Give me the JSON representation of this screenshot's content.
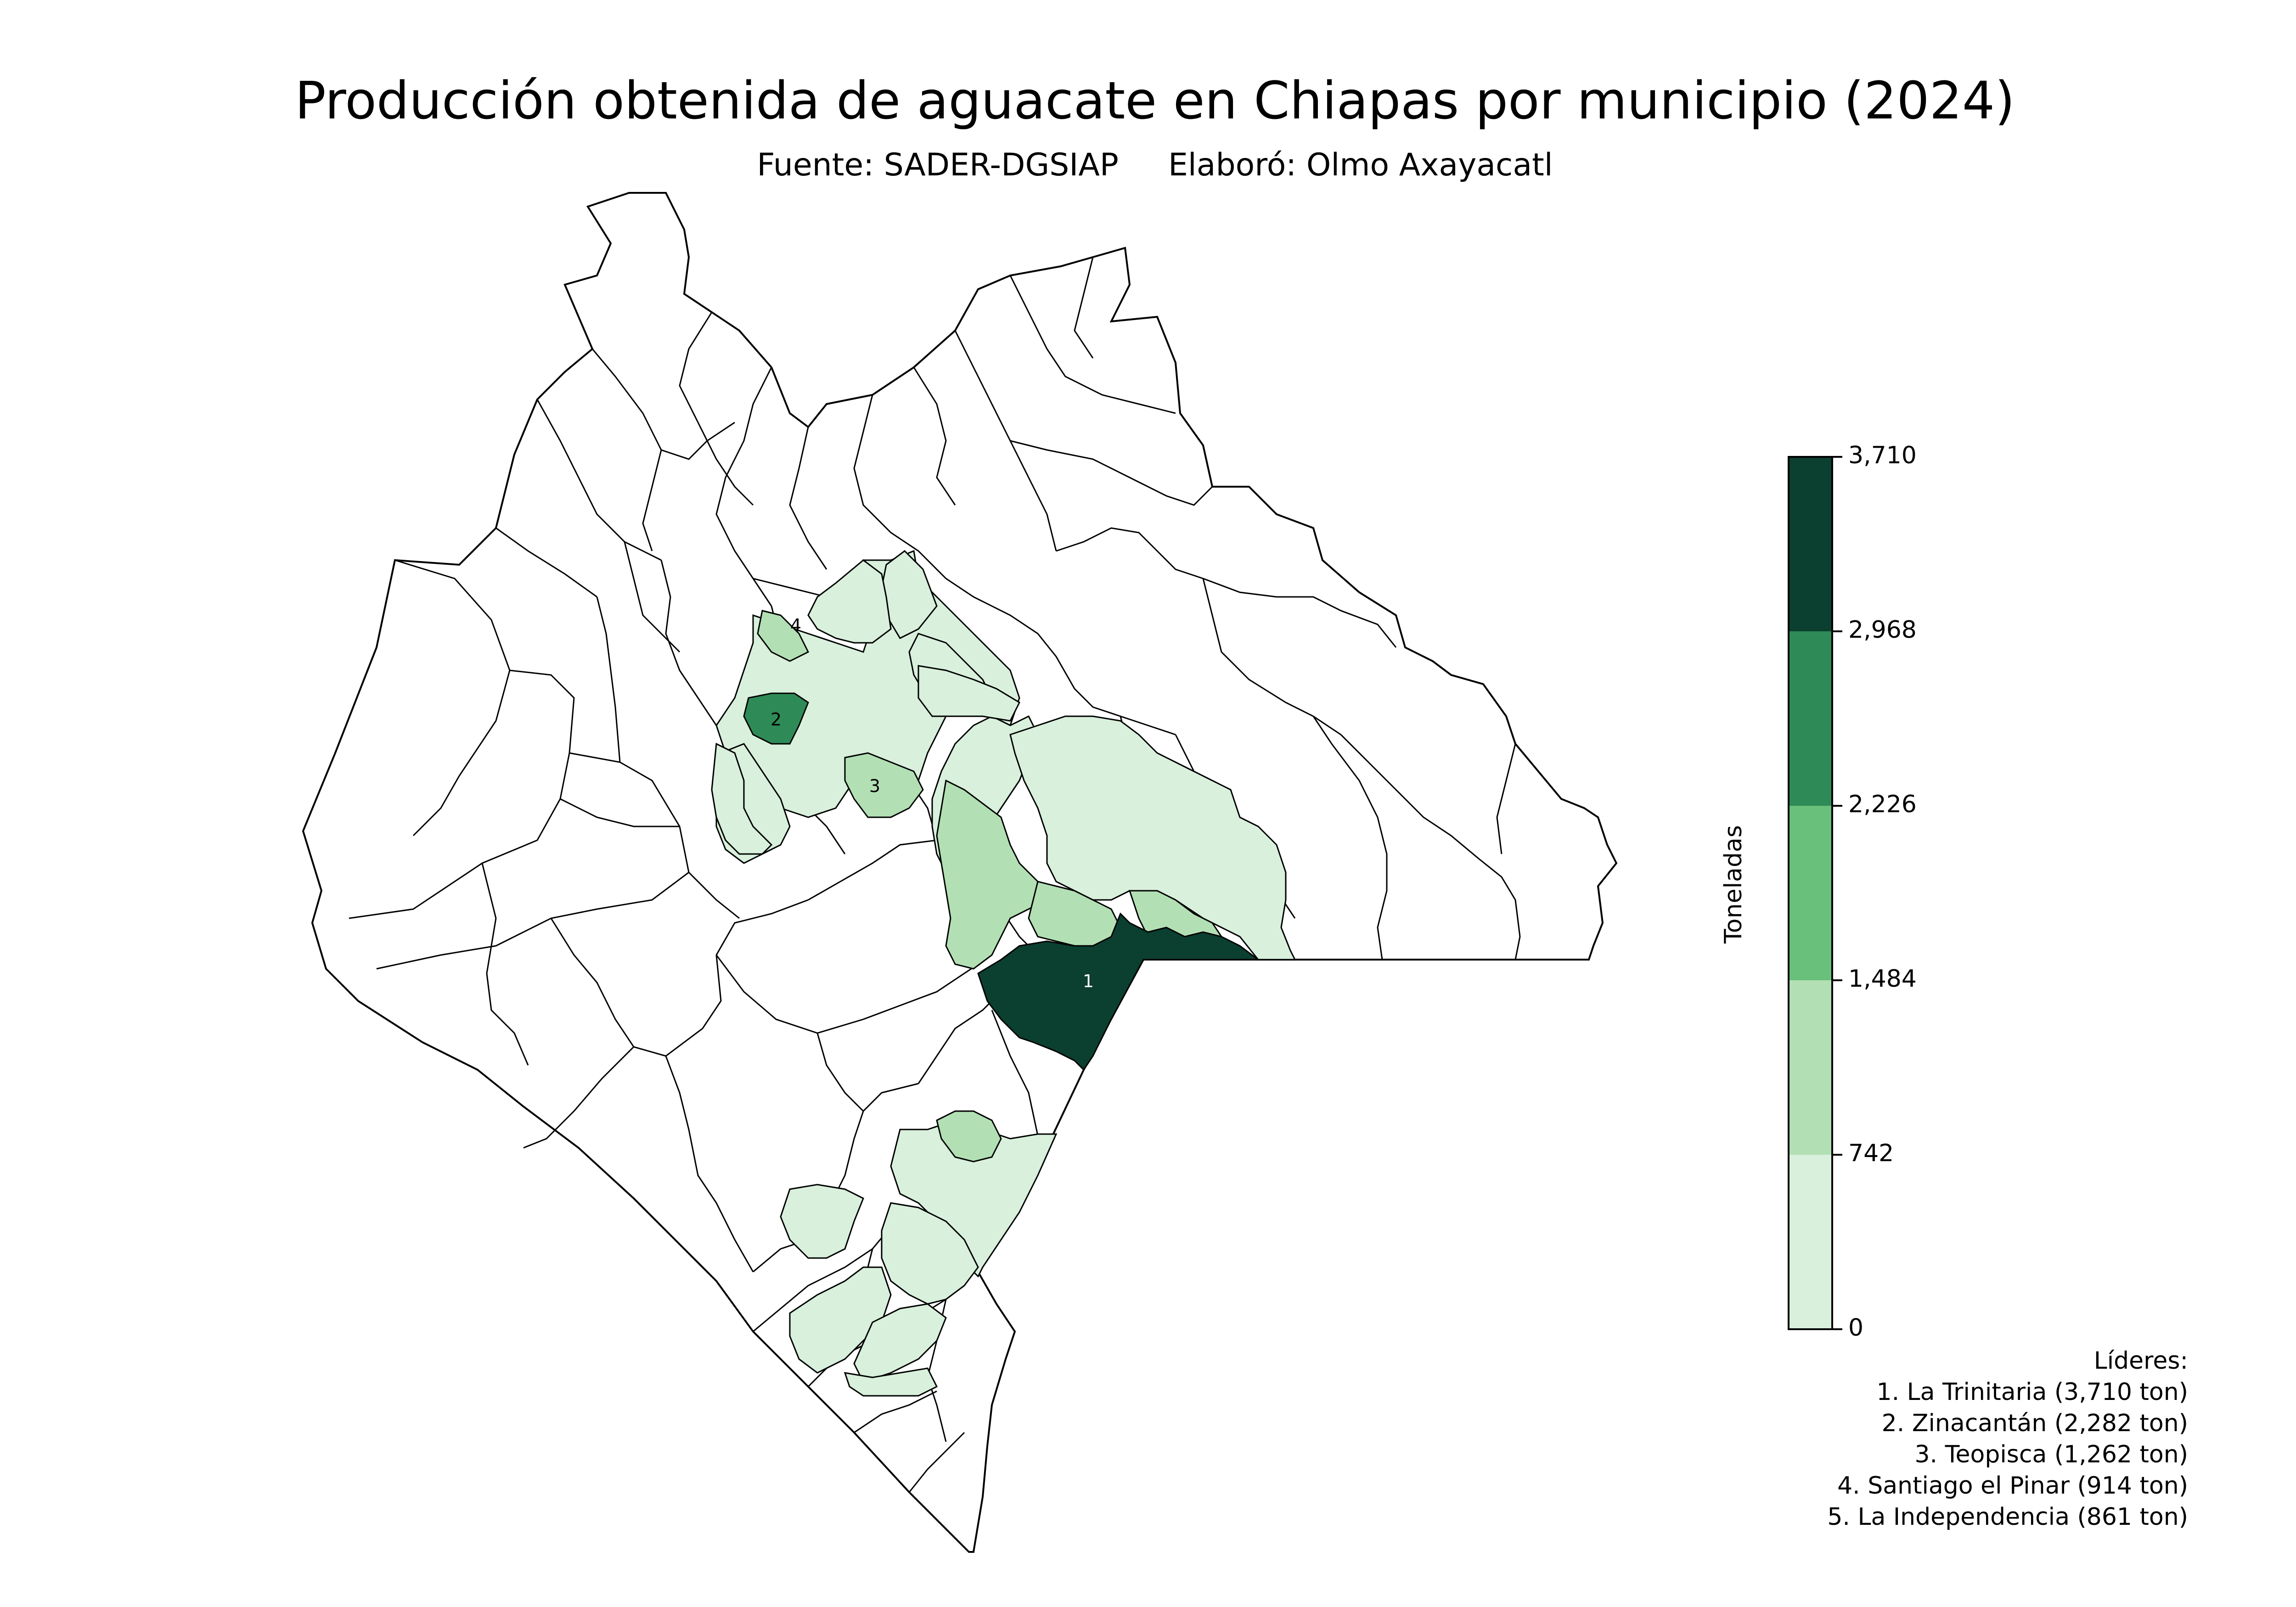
{
  "title": "Producción obtenida de aguacate en Chiapas por municipio (2024)",
  "subtitle": "Fuente: SADER-DGSIAP     Elaboró: Olmo Axayacatl",
  "colorbar": {
    "label": "Toneladas",
    "ticks": [
      "0",
      "742",
      "1,484",
      "2,226",
      "2,968",
      "3,710"
    ],
    "colors": [
      "#d8f0dc",
      "#b2e0b4",
      "#68c07a",
      "#2e8b57",
      "#0b3f30"
    ]
  },
  "leaders": {
    "heading": "Líderes:",
    "items": [
      "1. La Trinitaria (3,710 ton)",
      "2. Zinacantán (2,282 ton)",
      "3. Teopisca (1,262 ton)",
      "4. Santiago el Pinar (914 ton)",
      "5. La Independencia (861 ton)"
    ]
  },
  "map_labels": [
    "1",
    "2",
    "3",
    "4"
  ],
  "colors": {
    "outline": "#000000",
    "no_data": "#ffffff"
  }
}
